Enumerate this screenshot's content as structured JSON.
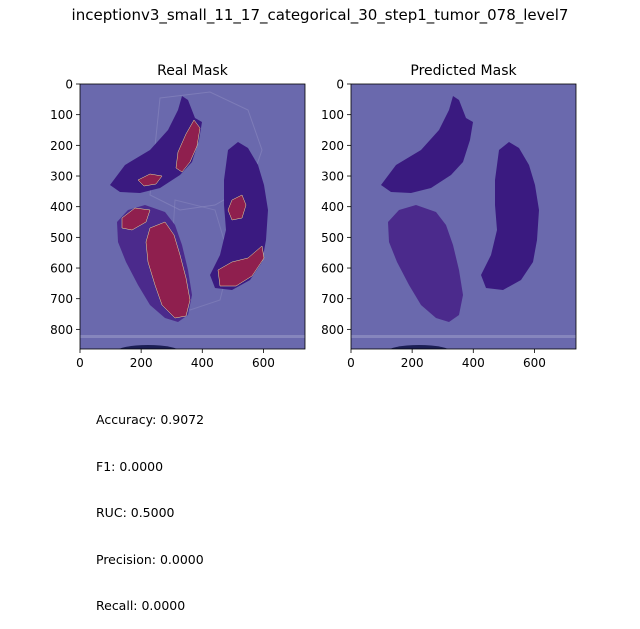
{
  "figure": {
    "title": "inceptionv3_small_11_17_categorical_30_step1_tumor_078_level7"
  },
  "colors": {
    "overlay": "#6a69ad",
    "tissue_dark": "#3a1a80",
    "tissue_mid": "#4b2a8c",
    "tumor": "#8f1f4e",
    "tumor_edge": "#e8e0a0",
    "bottom_band": "#1c1f55"
  },
  "chart_data": [
    {
      "type": "heatmap",
      "title": "Real Mask",
      "xticks": [
        0,
        200,
        400,
        600
      ],
      "yticks": [
        0,
        100,
        200,
        300,
        400,
        500,
        600,
        700,
        800
      ],
      "xlim": [
        0,
        736
      ],
      "ylim": [
        864,
        0
      ],
      "tumor_regions_present": true
    },
    {
      "type": "heatmap",
      "title": "Predicted Mask",
      "xticks": [
        0,
        200,
        400,
        600
      ],
      "yticks": [
        0,
        100,
        200,
        300,
        400,
        500,
        600,
        700,
        800
      ],
      "xlim": [
        0,
        736
      ],
      "ylim": [
        864,
        0
      ],
      "tumor_regions_present": false
    }
  ],
  "metrics": {
    "accuracy": "Accuracy: 0.9072",
    "f1": "F1: 0.0000",
    "ruc": "RUC: 0.5000",
    "precision": "Precision: 0.0000",
    "recall": "Recall: 0.0000"
  }
}
